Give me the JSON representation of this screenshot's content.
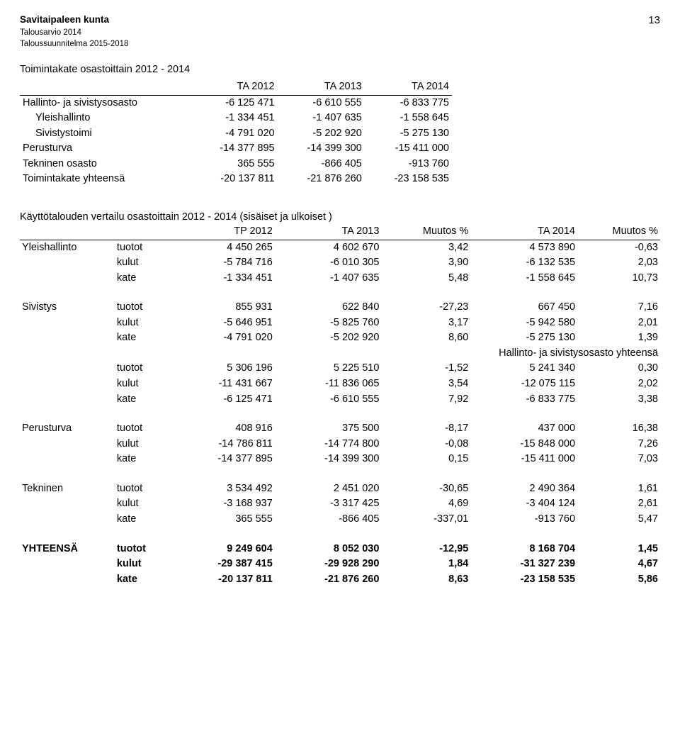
{
  "header": {
    "municipality": "Savitaipaleen kunta",
    "page_number": "13",
    "sub1": "Talousarvio 2014",
    "sub2": "Taloussuunnitelma 2015-2018"
  },
  "table1": {
    "title": "Toimintakate osastoittain 2012 - 2014",
    "headers": {
      "label": "",
      "c1": "TA 2012",
      "c2": "TA 2013",
      "c3": "TA 2014"
    },
    "rows": [
      {
        "label": "Hallinto- ja sivistysosasto",
        "indent": false,
        "c1": "-6 125 471",
        "c2": "-6 610 555",
        "c3": "-6 833 775"
      },
      {
        "label": "Yleishallinto",
        "indent": true,
        "c1": "-1 334 451",
        "c2": "-1 407 635",
        "c3": "-1 558 645"
      },
      {
        "label": "Sivistystoimi",
        "indent": true,
        "c1": "-4 791 020",
        "c2": "-5 202 920",
        "c3": "-5 275 130"
      },
      {
        "label": "Perusturva",
        "indent": false,
        "c1": "-14 377 895",
        "c2": "-14 399 300",
        "c3": "-15 411 000"
      },
      {
        "label": "Tekninen osasto",
        "indent": false,
        "c1": "365 555",
        "c2": "-866 405",
        "c3": "-913 760"
      },
      {
        "label": "Toimintakate yhteensä",
        "indent": false,
        "c1": "-20 137 811",
        "c2": "-21 876 260",
        "c3": "-23 158 535"
      }
    ]
  },
  "table2": {
    "title": "Käyttötalouden vertailu osastoittain 2012 - 2014 (sisäiset ja ulkoiset )",
    "headers": {
      "tp": "TP 2012",
      "ta13": "TA 2013",
      "m1": "Muutos %",
      "ta14": "TA 2014",
      "m2": "Muutos %"
    },
    "groups": [
      {
        "label": "Yleishallinto",
        "rows": [
          {
            "sub": "tuotot",
            "tp": "4 450 265",
            "ta13": "4 602 670",
            "m1": "3,42",
            "ta14": "4 573 890",
            "m2": "-0,63"
          },
          {
            "sub": "kulut",
            "tp": "-5 784 716",
            "ta13": "-6 010 305",
            "m1": "3,90",
            "ta14": "-6 132 535",
            "m2": "2,03"
          },
          {
            "sub": "kate",
            "tp": "-1 334 451",
            "ta13": "-1 407 635",
            "m1": "5,48",
            "ta14": "-1 558 645",
            "m2": "10,73"
          }
        ]
      },
      {
        "label": "Sivistys",
        "rows": [
          {
            "sub": "tuotot",
            "tp": "855 931",
            "ta13": "622 840",
            "m1": "-27,23",
            "ta14": "667 450",
            "m2": "7,16"
          },
          {
            "sub": "kulut",
            "tp": "-5 646 951",
            "ta13": "-5 825 760",
            "m1": "3,17",
            "ta14": "-5 942 580",
            "m2": "2,01"
          },
          {
            "sub": "kate",
            "tp": "-4 791 020",
            "ta13": "-5 202 920",
            "m1": "8,60",
            "ta14": "-5 275 130",
            "m2": "1,39"
          }
        ],
        "summary": {
          "label": "Hallinto- ja sivistysosasto yhteensä",
          "rows": [
            {
              "sub": "tuotot",
              "tp": "5 306 196",
              "ta13": "5 225 510",
              "m1": "-1,52",
              "ta14": "5 241 340",
              "m2": "0,30"
            },
            {
              "sub": "kulut",
              "tp": "-11 431 667",
              "ta13": "-11 836 065",
              "m1": "3,54",
              "ta14": "-12 075 115",
              "m2": "2,02"
            },
            {
              "sub": "kate",
              "tp": "-6 125 471",
              "ta13": "-6 610 555",
              "m1": "7,92",
              "ta14": "-6 833 775",
              "m2": "3,38"
            }
          ]
        }
      },
      {
        "label": "Perusturva",
        "rows": [
          {
            "sub": "tuotot",
            "tp": "408 916",
            "ta13": "375 500",
            "m1": "-8,17",
            "ta14": "437 000",
            "m2": "16,38"
          },
          {
            "sub": "kulut",
            "tp": "-14 786 811",
            "ta13": "-14 774 800",
            "m1": "-0,08",
            "ta14": "-15 848 000",
            "m2": "7,26"
          },
          {
            "sub": "kate",
            "tp": "-14 377 895",
            "ta13": "-14 399 300",
            "m1": "0,15",
            "ta14": "-15 411 000",
            "m2": "7,03"
          }
        ]
      },
      {
        "label": "Tekninen",
        "rows": [
          {
            "sub": "tuotot",
            "tp": "3 534 492",
            "ta13": "2 451 020",
            "m1": "-30,65",
            "ta14": "2 490 364",
            "m2": "1,61"
          },
          {
            "sub": "kulut",
            "tp": "-3 168 937",
            "ta13": "-3 317 425",
            "m1": "4,69",
            "ta14": "-3 404 124",
            "m2": "2,61"
          },
          {
            "sub": "kate",
            "tp": "365 555",
            "ta13": "-866 405",
            "m1": "-337,01",
            "ta14": "-913 760",
            "m2": "5,47"
          }
        ]
      }
    ],
    "total": {
      "label": "YHTEENSÄ",
      "rows": [
        {
          "sub": "tuotot",
          "tp": "9 249 604",
          "ta13": "8 052 030",
          "m1": "-12,95",
          "ta14": "8 168 704",
          "m2": "1,45"
        },
        {
          "sub": "kulut",
          "tp": "-29 387 415",
          "ta13": "-29 928 290",
          "m1": "1,84",
          "ta14": "-31 327 239",
          "m2": "4,67"
        },
        {
          "sub": "kate",
          "tp": "-20 137 811",
          "ta13": "-21 876 260",
          "m1": "8,63",
          "ta14": "-23 158 535",
          "m2": "5,86"
        }
      ]
    }
  }
}
